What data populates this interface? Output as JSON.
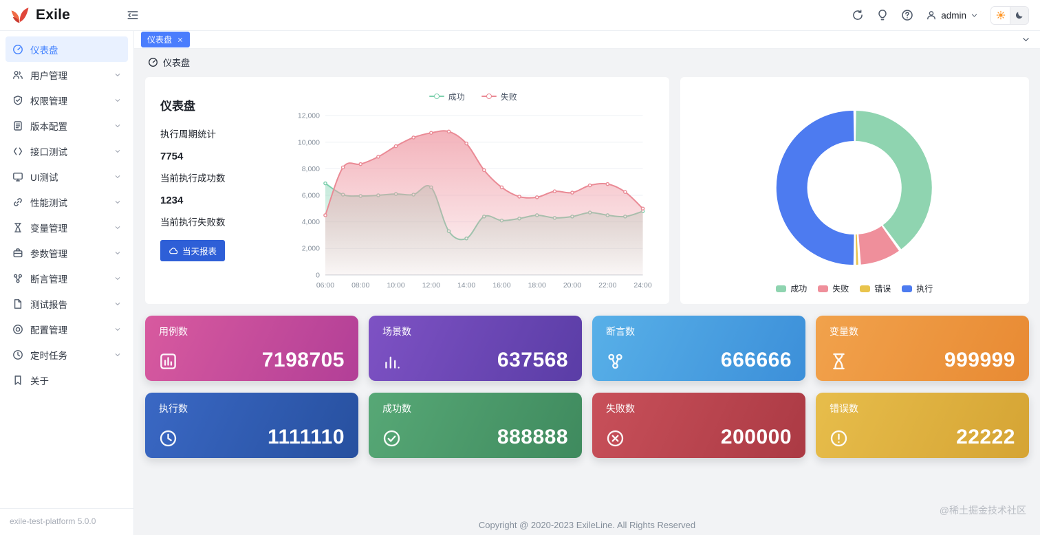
{
  "colors": {
    "primary": "#4080ff",
    "tab_active_bg": "#4a7dfd",
    "button_blue": "#2e5fd7",
    "sidebar_active_bg": "#e9f1ff",
    "content_bg": "#f2f3f5"
  },
  "header": {
    "logo_text": "Exile",
    "action_icons": [
      "refresh-icon",
      "bulb-icon",
      "help-icon"
    ],
    "user_name": "admin",
    "theme_toggle": {
      "options": [
        "light",
        "dark"
      ],
      "active": "light"
    }
  },
  "tabs": [
    {
      "label": "仪表盘",
      "active": true,
      "closable": true
    }
  ],
  "sidebar": {
    "items": [
      {
        "key": "dashboard",
        "label": "仪表盘",
        "icon": "dashboard-icon",
        "active": true,
        "expandable": false
      },
      {
        "key": "user-management",
        "label": "用户管理",
        "icon": "users-icon",
        "active": false,
        "expandable": true
      },
      {
        "key": "permission-management",
        "label": "权限管理",
        "icon": "shield-icon",
        "active": false,
        "expandable": true
      },
      {
        "key": "version-config",
        "label": "版本配置",
        "icon": "document-icon",
        "active": false,
        "expandable": true
      },
      {
        "key": "api-test",
        "label": "接口测试",
        "icon": "api-icon",
        "active": false,
        "expandable": true
      },
      {
        "key": "ui-test",
        "label": "UI测试",
        "icon": "monitor-icon",
        "active": false,
        "expandable": true
      },
      {
        "key": "performance-test",
        "label": "性能测试",
        "icon": "link-icon",
        "active": false,
        "expandable": true
      },
      {
        "key": "variable-management",
        "label": "变量管理",
        "icon": "hourglass-icon",
        "active": false,
        "expandable": true
      },
      {
        "key": "parameter-management",
        "label": "参数管理",
        "icon": "briefcase-icon",
        "active": false,
        "expandable": true
      },
      {
        "key": "assertion-management",
        "label": "断言管理",
        "icon": "nodes-icon",
        "active": false,
        "expandable": true
      },
      {
        "key": "test-report",
        "label": "测试报告",
        "icon": "file-icon",
        "active": false,
        "expandable": true
      },
      {
        "key": "config-management",
        "label": "配置管理",
        "icon": "target-icon",
        "active": false,
        "expandable": true
      },
      {
        "key": "scheduled-task",
        "label": "定时任务",
        "icon": "clock-icon",
        "active": false,
        "expandable": true
      },
      {
        "key": "about",
        "label": "关于",
        "icon": "bookmark-icon",
        "active": false,
        "expandable": false
      }
    ],
    "version": "exile-test-platform 5.0.0"
  },
  "breadcrumb": {
    "icon": "dashboard-icon",
    "label": "仪表盘"
  },
  "summary_card": {
    "title": "仪表盘",
    "section_label": "执行周期统计",
    "success_value": "7754",
    "success_label": "当前执行成功数",
    "fail_value": "1234",
    "fail_label": "当前执行失败数",
    "report_button_label": "当天报表",
    "report_button_icon": "cloud-download-icon"
  },
  "chart_data": [
    {
      "type": "area",
      "title": "执行周期统计",
      "x": [
        "06:00",
        "07:00",
        "08:00",
        "09:00",
        "10:00",
        "11:00",
        "12:00",
        "13:00",
        "14:00",
        "15:00",
        "16:00",
        "17:00",
        "18:00",
        "19:00",
        "20:00",
        "21:00",
        "22:00",
        "23:00",
        "24:00"
      ],
      "x_tick_every": 2,
      "ylim": [
        0,
        12000
      ],
      "y_tick_step": 2000,
      "grid": true,
      "legend_position": "top",
      "series": [
        {
          "name": "成功",
          "color": "#7ed0ae",
          "fill_from": "rgba(140,214,184,0.50)",
          "fill_to": "rgba(140,214,184,0.03)",
          "values": [
            6900,
            6050,
            5950,
            6000,
            6100,
            6050,
            6600,
            3300,
            2750,
            4400,
            4100,
            4250,
            4500,
            4300,
            4400,
            4700,
            4500,
            4400,
            4800
          ]
        },
        {
          "name": "失败",
          "color": "#ea8a95",
          "fill_from": "rgba(240,160,170,0.80)",
          "fill_to": "rgba(240,160,170,0.08)",
          "values": [
            4500,
            8100,
            8350,
            8900,
            9700,
            10350,
            10700,
            10800,
            9900,
            7900,
            6600,
            5900,
            5850,
            6300,
            6200,
            6750,
            6850,
            6250,
            5000
          ]
        }
      ]
    },
    {
      "type": "pie",
      "donut": true,
      "labels": [
        "成功",
        "失败",
        "错误",
        "执行"
      ],
      "values": [
        888888,
        200000,
        22222,
        1111110
      ],
      "colors": [
        "#8fd4b0",
        "#ef8f9b",
        "#e9c44d",
        "#4d7bf0"
      ],
      "legend_position": "bottom"
    }
  ],
  "stat_cards": [
    {
      "key": "case-count",
      "label": "用例数",
      "value": "7198705",
      "icon": "bar-chart-box-icon",
      "gradient": [
        "#d85a9f",
        "#b23f97"
      ]
    },
    {
      "key": "scene-count",
      "label": "场景数",
      "value": "637568",
      "icon": "histogram-icon",
      "gradient": [
        "#7e52c4",
        "#5a3da6"
      ]
    },
    {
      "key": "assertion-count",
      "label": "断言数",
      "value": "666666",
      "icon": "nodes-icon",
      "gradient": [
        "#58b0e8",
        "#3c8fd9"
      ]
    },
    {
      "key": "variable-count",
      "label": "变量数",
      "value": "999999",
      "icon": "hourglass-icon",
      "gradient": [
        "#f1a24c",
        "#e88a33"
      ]
    },
    {
      "key": "execution-count",
      "label": "执行数",
      "value": "1111110",
      "icon": "clock-icon",
      "gradient": [
        "#3a68c4",
        "#27509f"
      ]
    },
    {
      "key": "success-count",
      "label": "成功数",
      "value": "888888",
      "icon": "check-circle-icon",
      "gradient": [
        "#57a876",
        "#3f8a5e"
      ]
    },
    {
      "key": "fail-count",
      "label": "失败数",
      "value": "200000",
      "icon": "close-circle-icon",
      "gradient": [
        "#c8505a",
        "#ab3a44"
      ]
    },
    {
      "key": "error-count",
      "label": "错误数",
      "value": "22222",
      "icon": "warning-circle-icon",
      "gradient": [
        "#e7bd4b",
        "#d5a434"
      ]
    }
  ],
  "footer": {
    "copyright": "Copyright @ 2020-2023 ExileLine. All Rights Reserved",
    "watermark": "@稀土掘金技术社区"
  }
}
